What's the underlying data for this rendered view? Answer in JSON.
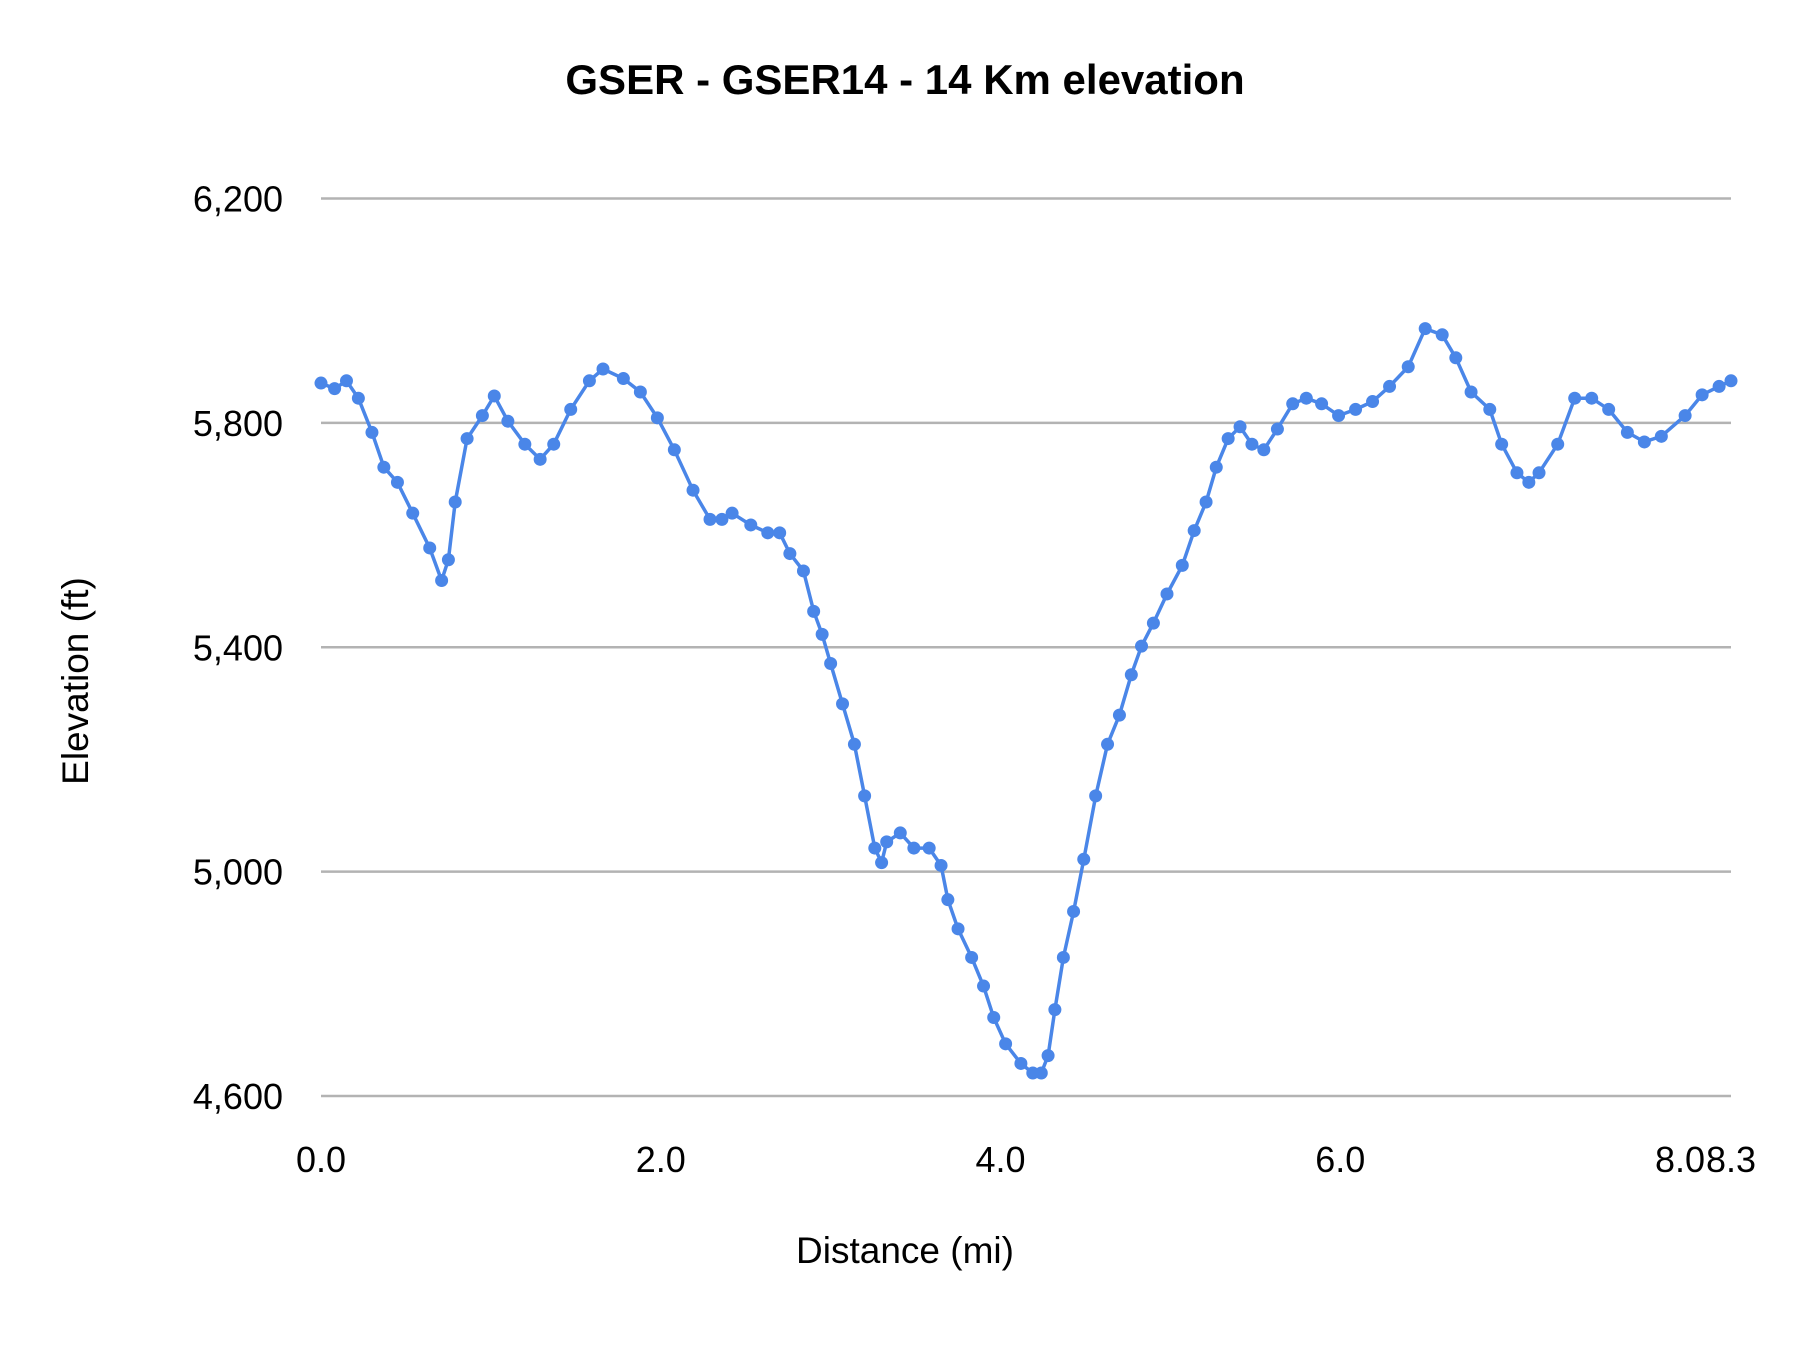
{
  "chart_data": {
    "type": "line",
    "title": "GSER - GSER14 - 14 Km elevation",
    "xlabel": "Distance (mi)",
    "ylabel": "Elevation (ft)",
    "xlim": [
      0,
      8.3
    ],
    "ylim": [
      4600,
      6200
    ],
    "x_ticks": [
      "0.0",
      "2.0",
      "4.0",
      "6.0",
      "8.0",
      "8.3"
    ],
    "x_tick_values": [
      0,
      2,
      4,
      6,
      8,
      8.3
    ],
    "y_ticks": [
      "4,600",
      "5,000",
      "5,400",
      "5,800",
      "6,200"
    ],
    "y_tick_values": [
      4600,
      5000,
      5400,
      5800,
      6200
    ],
    "grid": "horizontal",
    "markers": true,
    "color": "#4a86e8",
    "series": [
      {
        "x": [
          0,
          0.08,
          0.15,
          0.22,
          0.3,
          0.37,
          0.45,
          0.54,
          0.64,
          0.71,
          0.75,
          0.79,
          0.86,
          0.95,
          1.02,
          1.1,
          1.2,
          1.29,
          1.37,
          1.47,
          1.58,
          1.66,
          1.78,
          1.88,
          1.98,
          2.08,
          2.19,
          2.29,
          2.36,
          2.42,
          2.53,
          2.63,
          2.7,
          2.76,
          2.84,
          2.9,
          2.95,
          3.0,
          3.07,
          3.14,
          3.2,
          3.26,
          3.3,
          3.33,
          3.41,
          3.49,
          3.58,
          3.65,
          3.69,
          3.75,
          3.83,
          3.9,
          3.96,
          4.03,
          4.12,
          4.19,
          4.24,
          4.28,
          4.32,
          4.37,
          4.43,
          4.49,
          4.56,
          4.63,
          4.7,
          4.77,
          4.83,
          4.9,
          4.98,
          5.07,
          5.14,
          5.21,
          5.27,
          5.34,
          5.41,
          5.48,
          5.55,
          5.63,
          5.72,
          5.8,
          5.89,
          5.99,
          6.09,
          6.19,
          6.29,
          6.4,
          6.5,
          6.6,
          6.68,
          6.77,
          6.88,
          6.95,
          7.04,
          7.11,
          7.17,
          7.28,
          7.38,
          7.48,
          7.58,
          7.69,
          7.79,
          7.89,
          8.03,
          8.13,
          8.23,
          8.3
        ],
        "y": [
          5871,
          5861,
          5875,
          5844,
          5783,
          5721,
          5694,
          5639,
          5577,
          5519,
          5556,
          5659,
          5772,
          5813,
          5848,
          5803,
          5762,
          5735,
          5762,
          5824,
          5875,
          5896,
          5879,
          5855,
          5809,
          5752,
          5680,
          5628,
          5628,
          5639,
          5618,
          5604,
          5604,
          5567,
          5536,
          5464,
          5423,
          5371,
          5299,
          5227,
          5135,
          5042,
          5016,
          5053,
          5069,
          5042,
          5042,
          5011,
          4950,
          4898,
          4847,
          4796,
          4740,
          4693,
          4658,
          4641,
          4641,
          4672,
          4754,
          4847,
          4929,
          5022,
          5135,
          5227,
          5279,
          5351,
          5402,
          5443,
          5495,
          5546,
          5608,
          5659,
          5721,
          5772,
          5793,
          5762,
          5752,
          5789,
          5834,
          5844,
          5834,
          5813,
          5824,
          5838,
          5865,
          5900,
          5968,
          5957,
          5916,
          5855,
          5824,
          5762,
          5711,
          5694,
          5711,
          5762,
          5844,
          5844,
          5824,
          5783,
          5766,
          5776,
          5813,
          5850,
          5865,
          5875
        ]
      }
    ]
  }
}
